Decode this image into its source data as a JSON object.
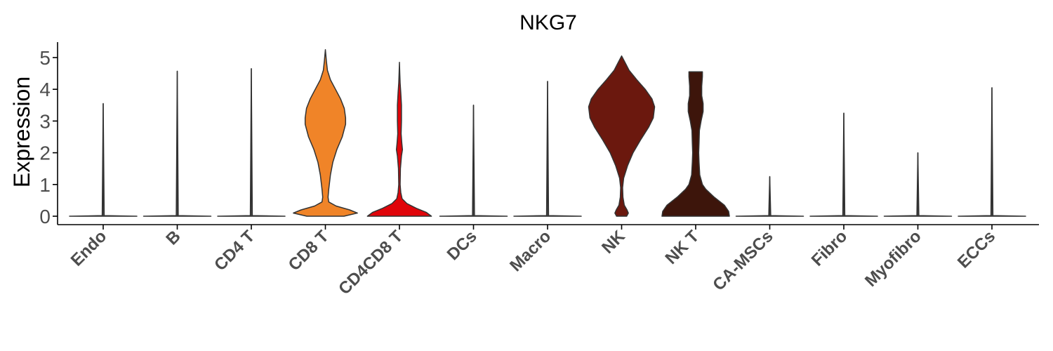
{
  "chart_data": {
    "type": "violin",
    "title": "NKG7",
    "xlabel": "",
    "ylabel": "Expression",
    "ylim": [
      -0.25,
      5.35
    ],
    "yticks": [
      0,
      1,
      2,
      3,
      4,
      5
    ],
    "grid": false,
    "legend": "none",
    "categories": [
      "Endo",
      "B",
      "CD4 T",
      "CD8 T",
      "CD4CD8 T",
      "DCs",
      "Macro",
      "NK",
      "NK T",
      "CA-MSCs",
      "Fibro",
      "Myofibro",
      "ECCs"
    ],
    "colors": [
      "#f0f0f0",
      "#f0f0f0",
      "#f0f0f0",
      "#f08428",
      "#e0050a",
      "#f0f0f0",
      "#f0f0f0",
      "#6b180e",
      "#3d150b",
      "#f0f0f0",
      "#f0f0f0",
      "#f0f0f0",
      "#f0f0f0"
    ],
    "max_values": [
      3.55,
      4.57,
      4.65,
      5.25,
      4.85,
      3.5,
      4.25,
      5.05,
      4.55,
      1.25,
      3.25,
      2.0,
      4.05
    ],
    "density": [
      [
        [
          0,
          1.0
        ],
        [
          0.02,
          0.03
        ],
        [
          3.55,
          0.0
        ]
      ],
      [
        [
          0,
          1.0
        ],
        [
          0.02,
          0.03
        ],
        [
          4.57,
          0.0
        ]
      ],
      [
        [
          0,
          1.0
        ],
        [
          0.02,
          0.03
        ],
        [
          4.65,
          0.0
        ]
      ],
      [
        [
          0,
          0.55
        ],
        [
          0.1,
          0.95
        ],
        [
          0.2,
          0.72
        ],
        [
          0.32,
          0.32
        ],
        [
          0.45,
          0.1
        ],
        [
          0.6,
          0.08
        ],
        [
          0.85,
          0.1
        ],
        [
          1.3,
          0.15
        ],
        [
          1.7,
          0.22
        ],
        [
          2.1,
          0.34
        ],
        [
          2.5,
          0.5
        ],
        [
          2.9,
          0.6
        ],
        [
          3.1,
          0.6
        ],
        [
          3.4,
          0.56
        ],
        [
          3.7,
          0.45
        ],
        [
          4.0,
          0.3
        ],
        [
          4.3,
          0.15
        ],
        [
          4.6,
          0.06
        ],
        [
          4.9,
          0.03
        ],
        [
          5.25,
          0.0
        ]
      ],
      [
        [
          0,
          0.95
        ],
        [
          0.12,
          0.8
        ],
        [
          0.25,
          0.5
        ],
        [
          0.4,
          0.22
        ],
        [
          0.55,
          0.08
        ],
        [
          0.75,
          0.04
        ],
        [
          1.0,
          0.02
        ],
        [
          1.5,
          0.03
        ],
        [
          1.9,
          0.06
        ],
        [
          2.1,
          0.09
        ],
        [
          2.3,
          0.07
        ],
        [
          2.6,
          0.05
        ],
        [
          3.0,
          0.06
        ],
        [
          3.5,
          0.06
        ],
        [
          3.9,
          0.04
        ],
        [
          4.2,
          0.02
        ],
        [
          4.5,
          0.01
        ],
        [
          4.85,
          0.0
        ]
      ],
      [
        [
          0,
          1.0
        ],
        [
          0.02,
          0.03
        ],
        [
          3.5,
          0.0
        ]
      ],
      [
        [
          0,
          1.0
        ],
        [
          0.02,
          0.03
        ],
        [
          4.25,
          0.0
        ]
      ],
      [
        [
          0,
          0.15
        ],
        [
          0.1,
          0.2
        ],
        [
          0.2,
          0.16
        ],
        [
          0.35,
          0.08
        ],
        [
          0.6,
          0.04
        ],
        [
          0.9,
          0.03
        ],
        [
          1.2,
          0.06
        ],
        [
          1.6,
          0.18
        ],
        [
          2.0,
          0.34
        ],
        [
          2.4,
          0.56
        ],
        [
          2.8,
          0.8
        ],
        [
          3.1,
          0.94
        ],
        [
          3.45,
          0.98
        ],
        [
          3.7,
          0.9
        ],
        [
          4.0,
          0.7
        ],
        [
          4.3,
          0.45
        ],
        [
          4.6,
          0.22
        ],
        [
          4.85,
          0.1
        ],
        [
          5.05,
          0.0
        ]
      ],
      [
        [
          0,
          1.0
        ],
        [
          0.15,
          0.98
        ],
        [
          0.35,
          0.85
        ],
        [
          0.6,
          0.55
        ],
        [
          0.85,
          0.3
        ],
        [
          1.0,
          0.2
        ],
        [
          1.3,
          0.12
        ],
        [
          1.7,
          0.1
        ],
        [
          2.0,
          0.09
        ],
        [
          2.3,
          0.1
        ],
        [
          2.7,
          0.11
        ],
        [
          3.0,
          0.16
        ],
        [
          3.3,
          0.22
        ],
        [
          3.55,
          0.22
        ],
        [
          3.8,
          0.18
        ],
        [
          4.1,
          0.18
        ],
        [
          4.4,
          0.2
        ],
        [
          4.55,
          0.2
        ]
      ],
      [
        [
          0,
          1.0
        ],
        [
          0.02,
          0.03
        ],
        [
          1.25,
          0.0
        ]
      ],
      [
        [
          0,
          1.0
        ],
        [
          0.02,
          0.03
        ],
        [
          3.25,
          0.0
        ]
      ],
      [
        [
          0,
          1.0
        ],
        [
          0.02,
          0.03
        ],
        [
          2.0,
          0.0
        ]
      ],
      [
        [
          0,
          1.0
        ],
        [
          0.02,
          0.03
        ],
        [
          4.05,
          0.0
        ]
      ]
    ]
  }
}
